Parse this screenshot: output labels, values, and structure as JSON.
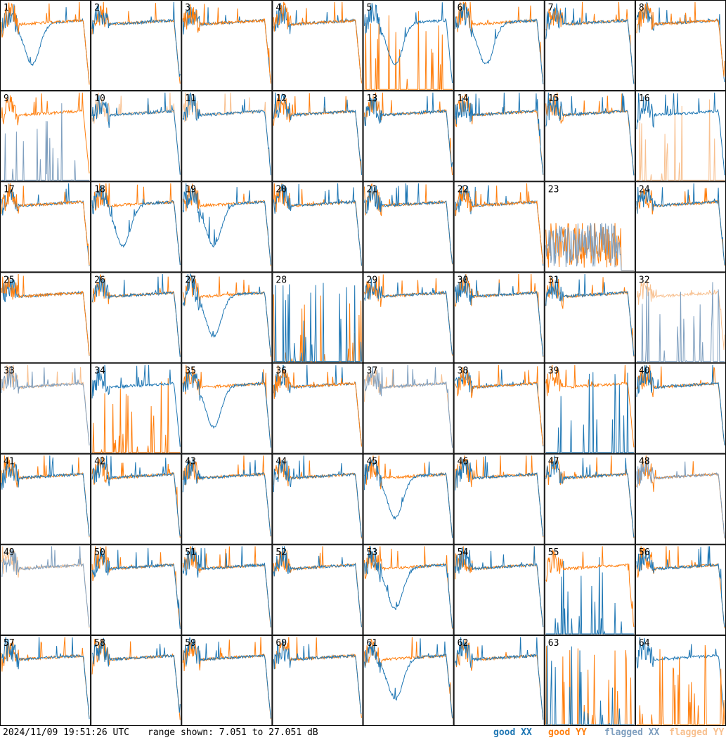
{
  "footer": {
    "timestamp": "2024/11/09 19:51:26 UTC",
    "range_text": "range shown: 7.051 to 27.051 dB"
  },
  "legend": [
    {
      "label": "good XX",
      "color": "#1f77b4"
    },
    {
      "label": "good YY",
      "color": "#ff7f0e"
    },
    {
      "label": "flagged XX",
      "color": "#7f9fbf"
    },
    {
      "label": "flagged YY",
      "color": "#f8c08f"
    }
  ],
  "chart_data": {
    "type": "line",
    "layout": "8x8 small multiples (one spectrum panel per tile)",
    "y_range_db": [
      7.051,
      27.051
    ],
    "panels": [
      {
        "id": "1",
        "xx": "good",
        "yy": "good",
        "shape": "dip",
        "order": "yy"
      },
      {
        "id": "2",
        "xx": "good",
        "yy": "good",
        "shape": "normal",
        "order": "xx"
      },
      {
        "id": "3",
        "xx": "good",
        "yy": "good",
        "shape": "normal",
        "order": "yy"
      },
      {
        "id": "4",
        "xx": "good",
        "yy": "good",
        "shape": "normal",
        "order": "yy"
      },
      {
        "id": "5",
        "xx": "good",
        "yy": "good",
        "shape": "dip",
        "order": "xx",
        "yy_dead": true
      },
      {
        "id": "6",
        "xx": "good",
        "yy": "good",
        "shape": "dip",
        "order": "xx"
      },
      {
        "id": "7",
        "xx": "good",
        "yy": "good",
        "shape": "normal",
        "order": "xx"
      },
      {
        "id": "8",
        "xx": "good",
        "yy": "good",
        "shape": "normal",
        "order": "yy"
      },
      {
        "id": "9",
        "xx": "flagged",
        "yy": "good",
        "shape": "normal",
        "order": "xx",
        "xx_dead": true
      },
      {
        "id": "10",
        "xx": "good",
        "yy": "flagged",
        "shape": "normal",
        "order": "xx"
      },
      {
        "id": "11",
        "xx": "good",
        "yy": "flagged",
        "shape": "normal",
        "order": "xx"
      },
      {
        "id": "12",
        "xx": "good",
        "yy": "good",
        "shape": "normal",
        "order": "xx"
      },
      {
        "id": "13",
        "xx": "good",
        "yy": "good",
        "shape": "normal",
        "order": "xx"
      },
      {
        "id": "14",
        "xx": "good",
        "yy": "good",
        "shape": "normal",
        "order": "xx"
      },
      {
        "id": "15",
        "xx": "good",
        "yy": "good",
        "shape": "normal",
        "order": "xx"
      },
      {
        "id": "16",
        "xx": "good",
        "yy": "flagged",
        "shape": "normal",
        "order": "xx",
        "yy_dead": true
      },
      {
        "id": "17",
        "xx": "good",
        "yy": "good",
        "shape": "normal",
        "order": "yy"
      },
      {
        "id": "18",
        "xx": "good",
        "yy": "good",
        "shape": "dip",
        "order": "xx"
      },
      {
        "id": "19",
        "xx": "good",
        "yy": "good",
        "shape": "dip",
        "order": "xx"
      },
      {
        "id": "20",
        "xx": "good",
        "yy": "good",
        "shape": "normal",
        "order": "xx"
      },
      {
        "id": "21",
        "xx": "good",
        "yy": "good",
        "shape": "normal",
        "order": "xx"
      },
      {
        "id": "22",
        "xx": "good",
        "yy": "good",
        "shape": "normal",
        "order": "yy"
      },
      {
        "id": "23",
        "xx": "flagged",
        "yy": "good",
        "shape": "noise",
        "order": "xx"
      },
      {
        "id": "24",
        "xx": "good",
        "yy": "good",
        "shape": "normal",
        "order": "xx"
      },
      {
        "id": "25",
        "xx": "good",
        "yy": "good",
        "shape": "normal",
        "order": "yy"
      },
      {
        "id": "26",
        "xx": "good",
        "yy": "good",
        "shape": "normal",
        "order": "xx"
      },
      {
        "id": "27",
        "xx": "good",
        "yy": "good",
        "shape": "dip",
        "order": "xx"
      },
      {
        "id": "28",
        "xx": "good",
        "yy": "good",
        "shape": "dead",
        "order": "xx",
        "xx_dead": true,
        "yy_dead": true
      },
      {
        "id": "29",
        "xx": "good",
        "yy": "good",
        "shape": "normal",
        "order": "xx"
      },
      {
        "id": "30",
        "xx": "good",
        "yy": "good",
        "shape": "normal",
        "order": "xx"
      },
      {
        "id": "31",
        "xx": "good",
        "yy": "good",
        "shape": "normal",
        "order": "xx"
      },
      {
        "id": "32",
        "xx": "flagged",
        "yy": "flagged",
        "shape": "normal",
        "order": "xx",
        "xx_dead": true
      },
      {
        "id": "33",
        "xx": "flagged",
        "yy": "flagged",
        "shape": "normal",
        "order": "xx"
      },
      {
        "id": "34",
        "xx": "good",
        "yy": "good",
        "shape": "normal",
        "order": "xx",
        "yy_dead": true
      },
      {
        "id": "35",
        "xx": "good",
        "yy": "good",
        "shape": "dip",
        "order": "xx"
      },
      {
        "id": "36",
        "xx": "good",
        "yy": "good",
        "shape": "normal",
        "order": "yy"
      },
      {
        "id": "37",
        "xx": "flagged",
        "yy": "flagged",
        "shape": "normal",
        "order": "xx"
      },
      {
        "id": "38",
        "xx": "good",
        "yy": "good",
        "shape": "normal",
        "order": "yy"
      },
      {
        "id": "39",
        "xx": "good",
        "yy": "good",
        "shape": "normal",
        "order": "xx",
        "xx_dead": true
      },
      {
        "id": "40",
        "xx": "good",
        "yy": "good",
        "shape": "normal",
        "order": "xx"
      },
      {
        "id": "41",
        "xx": "good",
        "yy": "good",
        "shape": "normal",
        "order": "xx"
      },
      {
        "id": "42",
        "xx": "good",
        "yy": "good",
        "shape": "normal",
        "order": "xx"
      },
      {
        "id": "43",
        "xx": "good",
        "yy": "good",
        "shape": "normal",
        "order": "xx"
      },
      {
        "id": "44",
        "xx": "good",
        "yy": "good",
        "shape": "normal",
        "order": "xx"
      },
      {
        "id": "45",
        "xx": "good",
        "yy": "good",
        "shape": "dip",
        "order": "xx"
      },
      {
        "id": "46",
        "xx": "good",
        "yy": "good",
        "shape": "normal",
        "order": "xx"
      },
      {
        "id": "47",
        "xx": "good",
        "yy": "good",
        "shape": "normal",
        "order": "xx"
      },
      {
        "id": "48",
        "xx": "flagged",
        "yy": "good",
        "shape": "normal",
        "order": "xx"
      },
      {
        "id": "49",
        "xx": "flagged",
        "yy": "flagged",
        "shape": "normal",
        "order": "xx"
      },
      {
        "id": "50",
        "xx": "good",
        "yy": "good",
        "shape": "normal",
        "order": "xx"
      },
      {
        "id": "51",
        "xx": "good",
        "yy": "good",
        "shape": "normal",
        "order": "xx"
      },
      {
        "id": "52",
        "xx": "good",
        "yy": "good",
        "shape": "normal",
        "order": "xx"
      },
      {
        "id": "53",
        "xx": "good",
        "yy": "good",
        "shape": "dip",
        "order": "xx"
      },
      {
        "id": "54",
        "xx": "good",
        "yy": "good",
        "shape": "normal",
        "order": "xx"
      },
      {
        "id": "55",
        "xx": "good",
        "yy": "good",
        "shape": "normal",
        "order": "yy",
        "xx_dead": true
      },
      {
        "id": "56",
        "xx": "good",
        "yy": "good",
        "shape": "normal",
        "order": "xx"
      },
      {
        "id": "57",
        "xx": "good",
        "yy": "good",
        "shape": "normal",
        "order": "xx"
      },
      {
        "id": "58",
        "xx": "good",
        "yy": "good",
        "shape": "normal",
        "order": "xx"
      },
      {
        "id": "59",
        "xx": "good",
        "yy": "good",
        "shape": "normal",
        "order": "xx"
      },
      {
        "id": "60",
        "xx": "good",
        "yy": "good",
        "shape": "normal",
        "order": "xx"
      },
      {
        "id": "61",
        "xx": "good",
        "yy": "good",
        "shape": "dip",
        "order": "xx"
      },
      {
        "id": "62",
        "xx": "good",
        "yy": "good",
        "shape": "normal",
        "order": "xx"
      },
      {
        "id": "63",
        "xx": "good",
        "yy": "good",
        "shape": "dead",
        "order": "xx",
        "xx_dead": true,
        "yy_dead": true
      },
      {
        "id": "64",
        "xx": "good",
        "yy": "good",
        "shape": "normal",
        "order": "yy",
        "yy_dead": true
      }
    ]
  }
}
